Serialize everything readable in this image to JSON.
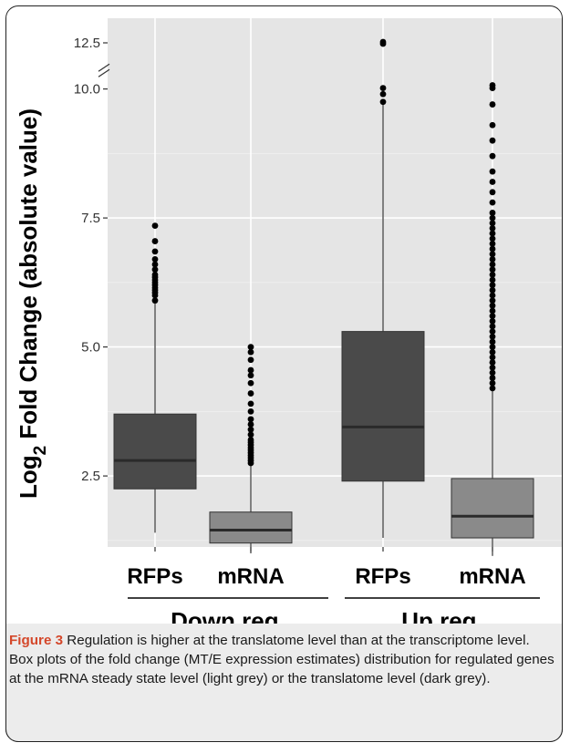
{
  "caption": {
    "label": "Figure 3",
    "text": " Regulation is higher at the translatome level than at the transcriptome level. Box plots of the fold change (MT/E expression estimates) distribution for regulated genes at the mRNA steady state level (light grey) or the translatome level (dark grey)."
  },
  "chart_data": {
    "type": "box",
    "ylabel_main": "Log",
    "ylabel_sub": "2",
    "ylabel_rest": " Fold Change (absolute value)",
    "yticks": [
      "2.5",
      "5.0",
      "7.5",
      "10.0",
      "12.5"
    ],
    "ytick_values": [
      2.5,
      5.0,
      7.5,
      10.0,
      12.5
    ],
    "axis_break": true,
    "ylim": [
      0.9,
      12.7
    ],
    "categories": [
      "RFPs",
      "mRNA",
      "RFPs",
      "mRNA"
    ],
    "groups": [
      {
        "label": "Down reg.",
        "members": [
          0,
          1
        ]
      },
      {
        "label": "Up reg.",
        "members": [
          2,
          3
        ]
      }
    ],
    "grid": true,
    "colors": {
      "dark": "#4a4a4a",
      "light": "#8a8a8a",
      "panel": "#e5e5e5",
      "grid": "#ffffff"
    },
    "boxes": [
      {
        "category": "RFPs",
        "group": "Down reg.",
        "fill": "dark",
        "min": 1.4,
        "q1": 2.25,
        "median": 2.8,
        "q3": 3.7,
        "max": 5.85,
        "outliers": [
          5.9,
          6.0,
          6.05,
          6.1,
          6.15,
          6.2,
          6.25,
          6.3,
          6.35,
          6.4,
          6.5,
          6.6,
          6.7,
          6.85,
          7.05,
          7.35
        ]
      },
      {
        "category": "mRNA",
        "group": "Down reg.",
        "fill": "light",
        "min": 1.0,
        "q1": 1.2,
        "median": 1.45,
        "q3": 1.8,
        "max": 2.7,
        "outliers": [
          2.75,
          2.8,
          2.85,
          2.9,
          2.95,
          3.0,
          3.05,
          3.1,
          3.15,
          3.2,
          3.3,
          3.4,
          3.5,
          3.6,
          3.75,
          3.9,
          4.1,
          4.3,
          4.45,
          4.55,
          4.75,
          4.9,
          5.0
        ]
      },
      {
        "category": "RFPs",
        "group": "Up reg.",
        "fill": "dark",
        "min": 1.3,
        "q1": 2.4,
        "median": 3.45,
        "q3": 5.3,
        "max": 9.7,
        "outliers": [
          9.75,
          9.9,
          10.05,
          12.45,
          12.55
        ]
      },
      {
        "category": "mRNA",
        "group": "Up reg.",
        "fill": "light",
        "min": 0.95,
        "q1": 1.3,
        "median": 1.72,
        "q3": 2.45,
        "max": 4.15,
        "outliers": [
          4.2,
          4.3,
          4.4,
          4.5,
          4.6,
          4.7,
          4.8,
          4.9,
          5.0,
          5.1,
          5.2,
          5.3,
          5.4,
          5.5,
          5.6,
          5.7,
          5.8,
          5.9,
          6.0,
          6.1,
          6.2,
          6.3,
          6.4,
          6.5,
          6.6,
          6.7,
          6.8,
          6.9,
          7.0,
          7.1,
          7.2,
          7.3,
          7.4,
          7.5,
          7.6,
          7.8,
          8.0,
          8.2,
          8.4,
          8.7,
          9.0,
          9.3,
          9.7,
          10.05,
          10.2
        ]
      }
    ]
  }
}
